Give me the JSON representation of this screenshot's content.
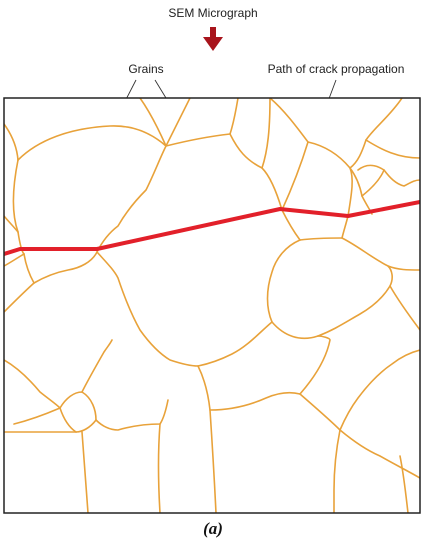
{
  "title": "SEM Micrograph",
  "labels": {
    "grains": "Grains",
    "crack_path": "Path of crack propagation"
  },
  "caption": "(a)",
  "colors": {
    "grain_boundary": "#E8A23A",
    "crack": "#E2202A",
    "arrow": "#A8141C",
    "frame": "#222222"
  },
  "icons": {
    "title_arrow": "down-arrow-icon"
  }
}
